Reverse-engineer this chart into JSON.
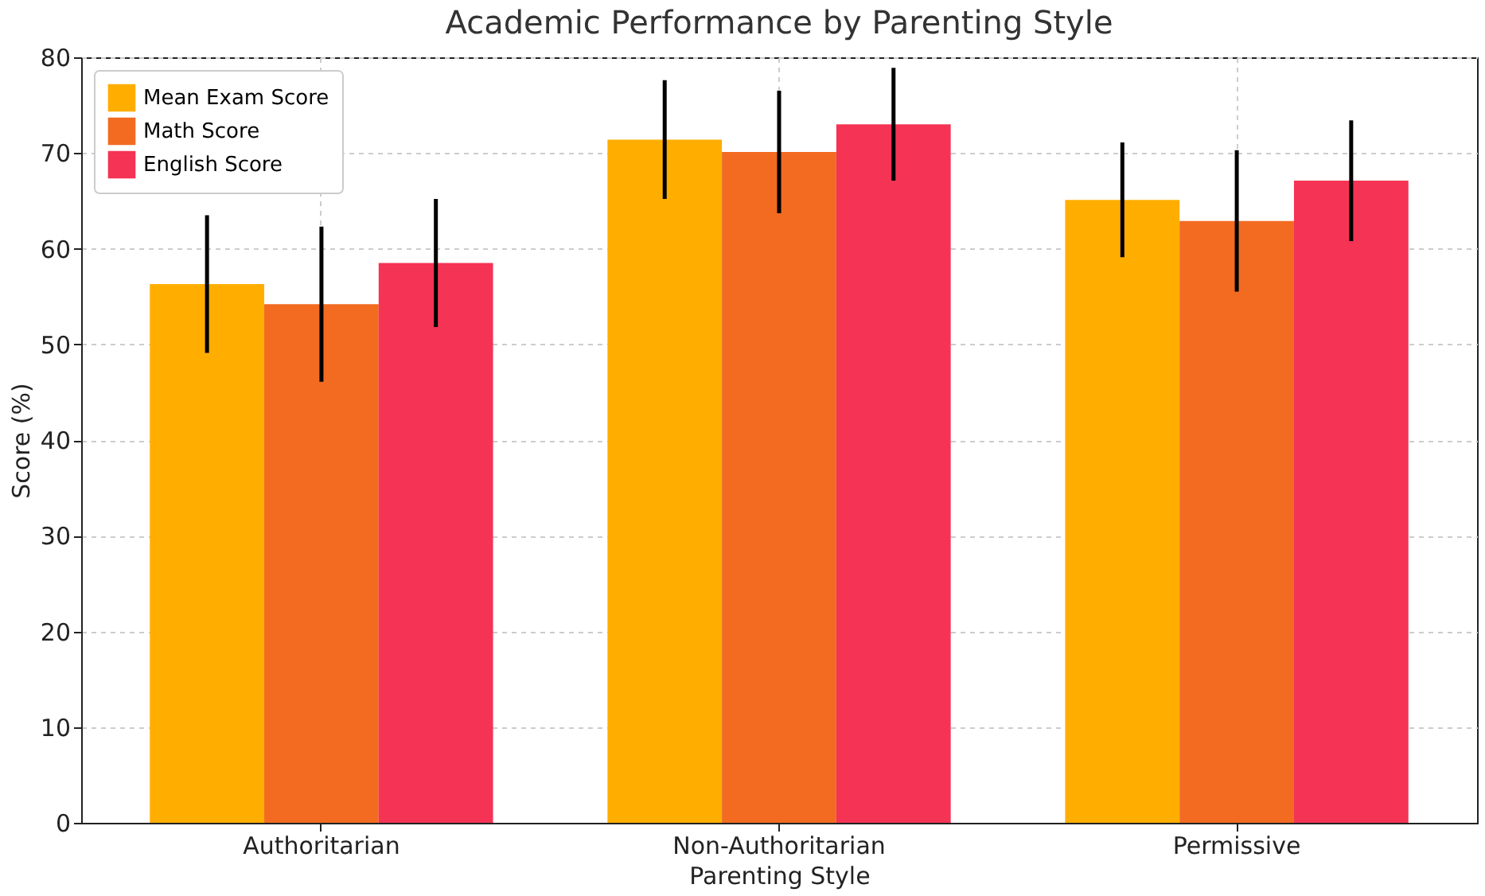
{
  "chart_data": {
    "type": "bar",
    "title": "Academic Performance by Parenting Style",
    "xlabel": "Parenting Style",
    "ylabel": "Score (%)",
    "categories": [
      "Authoritarian",
      "Non-Authoritarian",
      "Permissive"
    ],
    "series": [
      {
        "name": "Mean Exam Score",
        "color": "#ffae00",
        "values": [
          56.3,
          71.4,
          65.1
        ],
        "errors": [
          7.2,
          6.2,
          6.0
        ]
      },
      {
        "name": "Math Score",
        "color": "#f26b21",
        "values": [
          54.2,
          70.1,
          62.9
        ],
        "errors": [
          8.1,
          6.4,
          7.4
        ]
      },
      {
        "name": "English Score",
        "color": "#f53355",
        "values": [
          58.5,
          73.0,
          67.1
        ],
        "errors": [
          6.7,
          5.9,
          6.3
        ]
      }
    ],
    "ylim": [
      0,
      80
    ],
    "yticks": [
      0,
      10,
      20,
      30,
      40,
      50,
      60,
      70,
      80
    ],
    "grid": true,
    "legend": "top left"
  }
}
